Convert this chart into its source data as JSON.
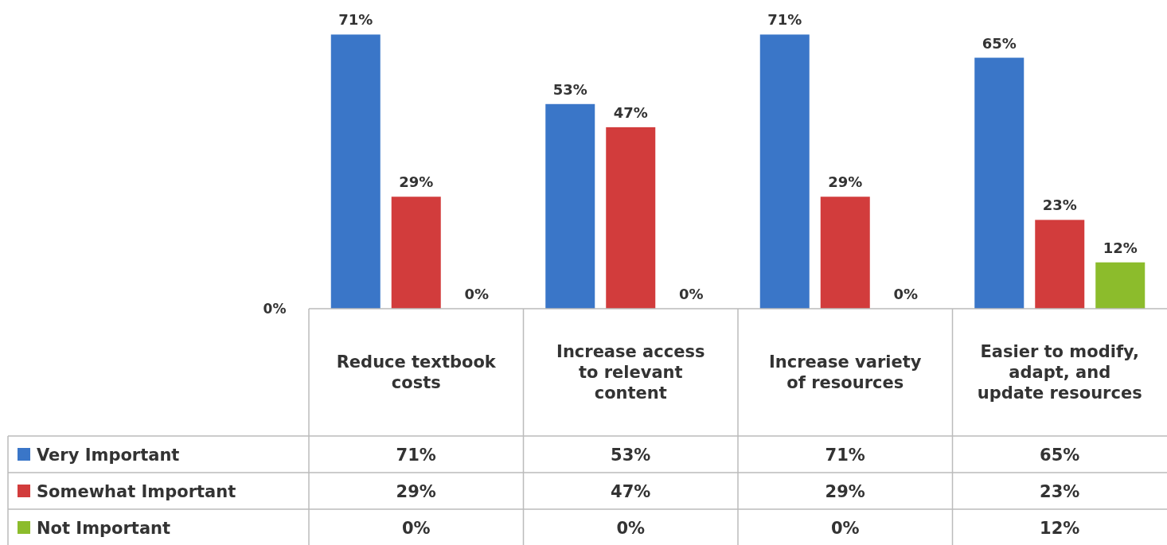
{
  "chart_data": {
    "type": "bar",
    "categories": [
      "Reduce textbook costs",
      "Increase access to relevant content",
      "Increase variety of resources",
      "Easier to modify, adapt, and update resources"
    ],
    "series": [
      {
        "name": "Very Important",
        "color": "#3a76c8",
        "values": [
          71,
          53,
          71,
          65
        ],
        "value_labels": [
          "71%",
          "53%",
          "71%",
          "65%"
        ]
      },
      {
        "name": "Somewhat Important",
        "color": "#d23c3c",
        "values": [
          29,
          47,
          29,
          23
        ],
        "value_labels": [
          "29%",
          "47%",
          "29%",
          "23%"
        ]
      },
      {
        "name": "Not Important",
        "color": "#8cbc2c",
        "values": [
          0,
          0,
          0,
          12
        ],
        "value_labels": [
          "0%",
          "0%",
          "0%",
          "12%"
        ]
      }
    ],
    "annotations": [
      "0%"
    ],
    "legend": "bottom"
  }
}
